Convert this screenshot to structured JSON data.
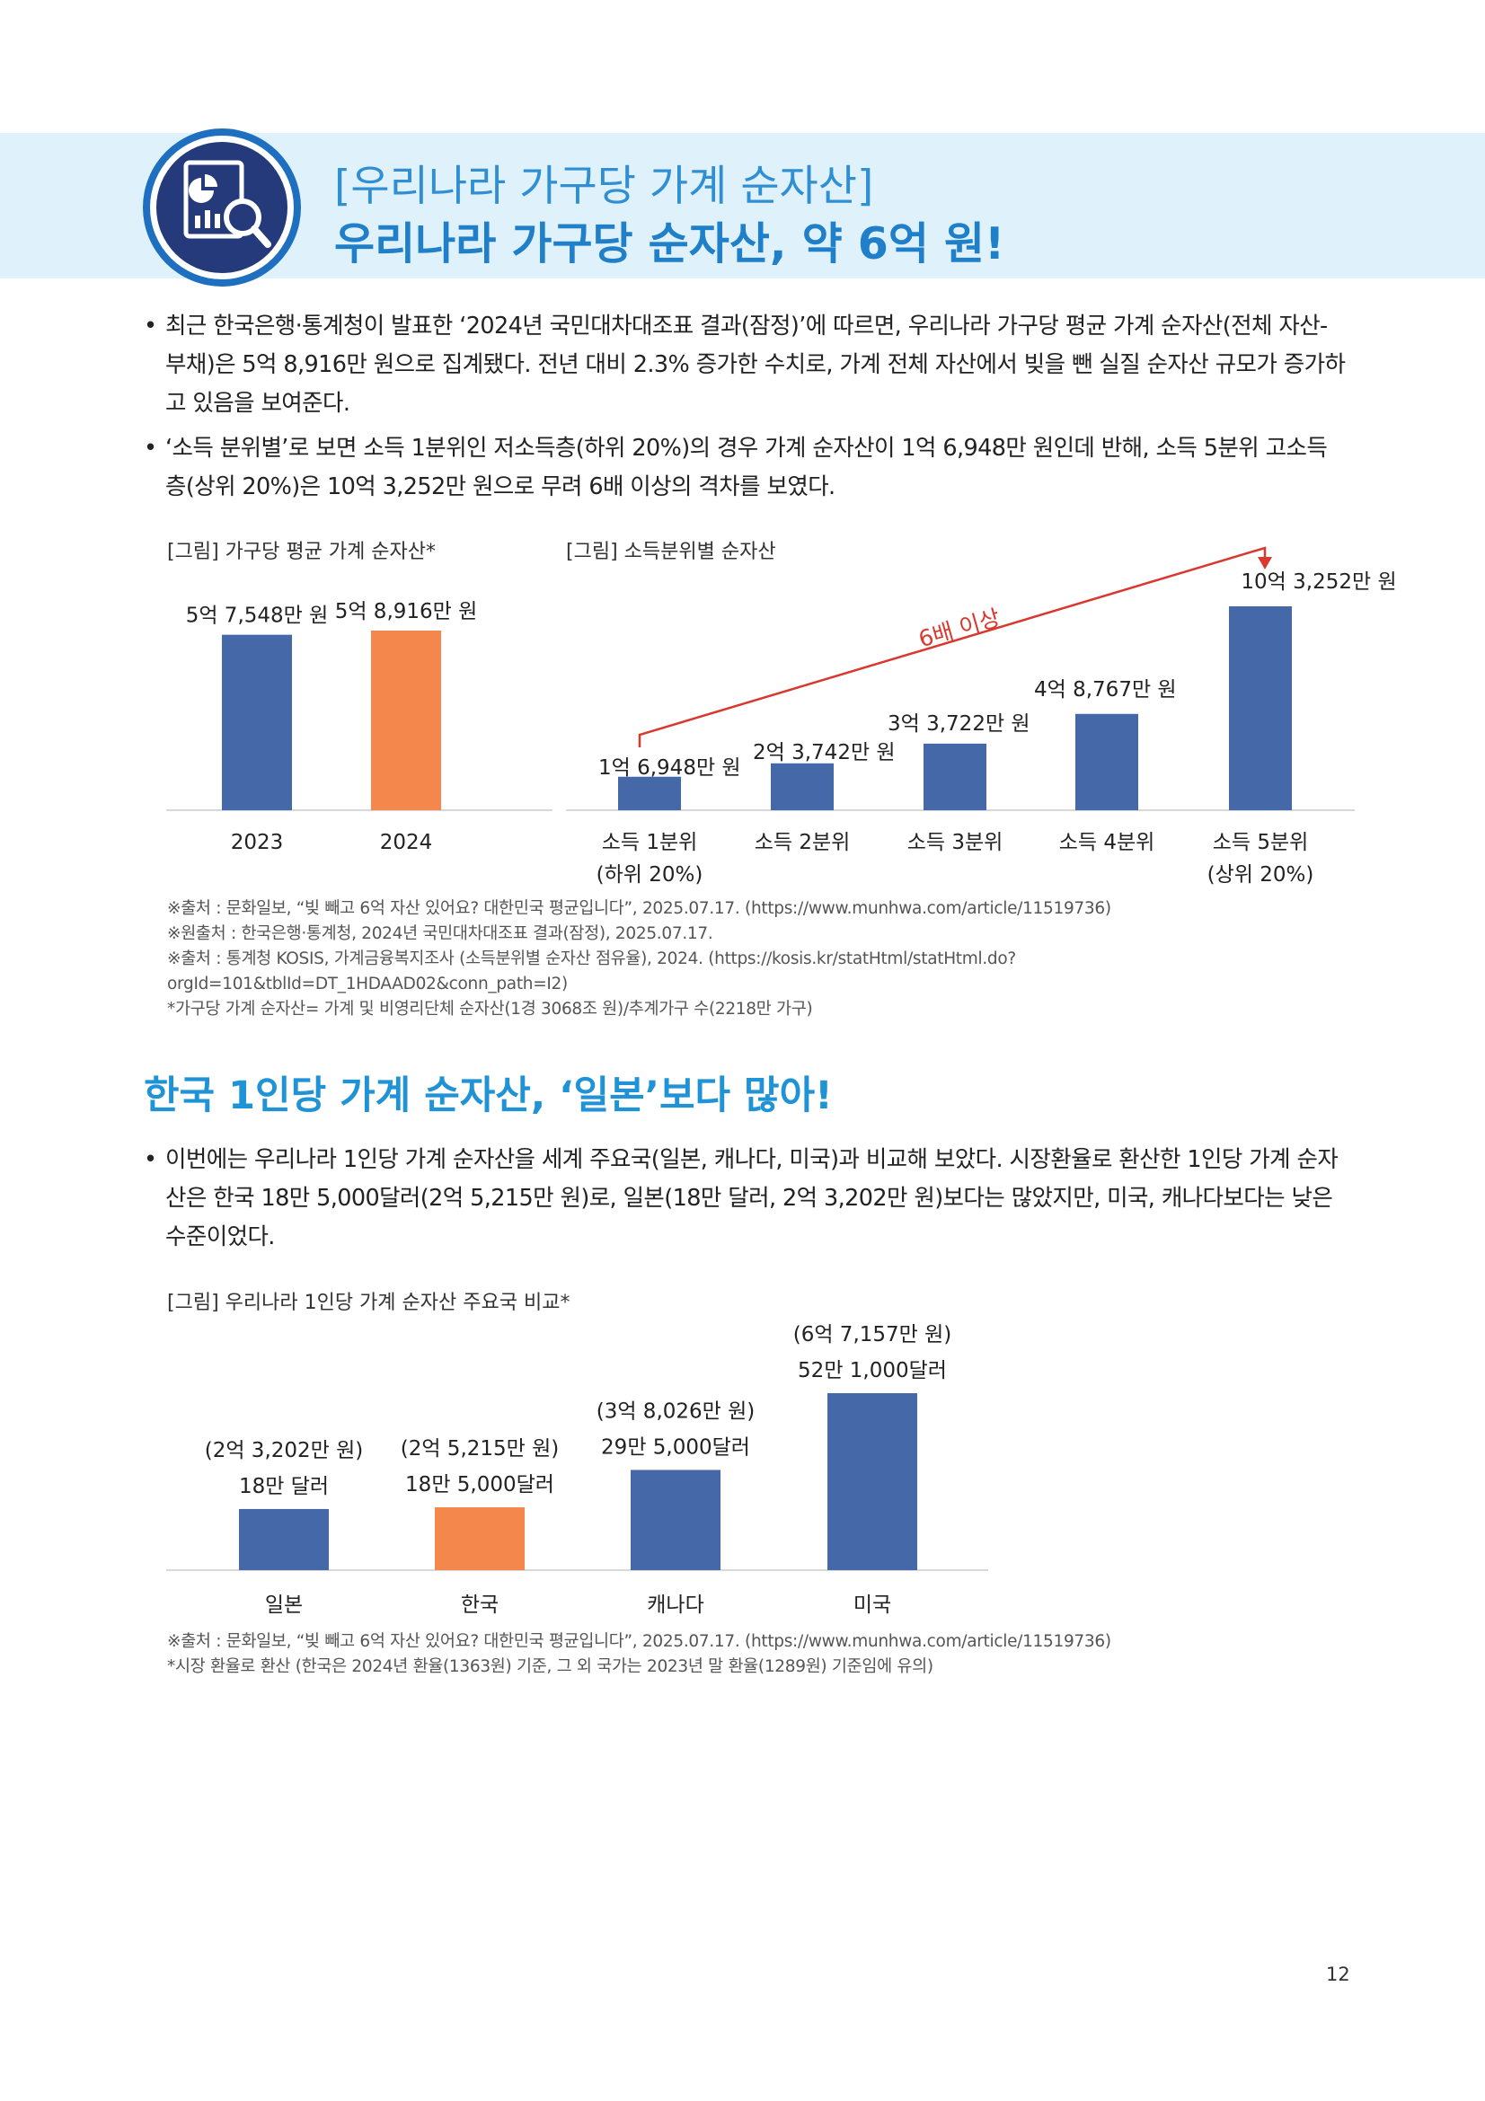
{
  "header": {
    "subtitle": "[우리나라 가구당 가계 순자산]",
    "title": "우리나라 가구당 순자산, 약 6억 원!",
    "icon": "chart-magnifier-icon"
  },
  "section1": {
    "bullets": [
      "최근 한국은행·통계청이 발표한 ‘2024년 국민대차대조표 결과(잠정)’에 따르면, 우리나라 가구당 평균 가계 순자산(전체 자산-부채)은 5억 8,916만 원으로 집계됐다. 전년 대비 2.3% 증가한 수치로, 가계 전체 자산에서 빚을 뺀 실질 순자산 규모가 증가하고 있음을 보여준다.",
      "‘소득 분위별’로 보면 소득 1분위인 저소득층(하위 20%)의 경우 가계 순자산이 1억 6,948만 원인데 반해, 소득 5분위 고소득층(상위 20%)은 10억 3,252만 원으로 무려 6배 이상의 격차를 보였다."
    ],
    "sources": [
      "※출처 : 문화일보, “빚 빼고 6억 자산 있어요? 대한민국 평균입니다”, 2025.07.17. (https://www.munhwa.com/article/11519736)",
      "※원출처 : 한국은행·통계청, 2024년 국민대차대조표 결과(잠정), 2025.07.17.",
      "※출처 : 통계청 KOSIS, 가계금융복지조사 (소득분위별 순자산 점유율), 2024. (https://kosis.kr/statHtml/statHtml.do?",
      "orgId=101&tblId=DT_1HDAAD02&conn_path=I2)",
      "*가구당 가계 순자산= 가계 및 비영리단체 순자산(1경 3068조 원)/추계가구 수(2218만 가구)"
    ]
  },
  "section2": {
    "title": "한국 1인당 가계 순자산, ‘일본’보다 많아!",
    "bullets": [
      "이번에는 우리나라 1인당 가계 순자산을 세계 주요국(일본, 캐나다, 미국)과 비교해 보았다. 시장환율로 환산한 1인당 가계 순자산은 한국 18만 5,000달러(2억 5,215만 원)로, 일본(18만 달러, 2억 3,202만 원)보다는 많았지만, 미국, 캐나다보다는 낮은 수준이었다."
    ],
    "sources": [
      "※출처 : 문화일보, “빚 빼고 6억 자산 있어요? 대한민국 평균입니다”, 2025.07.17. (https://www.munhwa.com/article/11519736)",
      "*시장 환율로 환산 (한국은 2024년 환율(1363원) 기준, 그 외 국가는 2023년 말 환율(1289원) 기준임에 유의)"
    ]
  },
  "chart_data": [
    {
      "type": "bar",
      "title": "[그림] 가구당 평균 가계 순자산*",
      "categories": [
        "2023",
        "2024"
      ],
      "values": [
        57548,
        58916
      ],
      "value_labels": [
        "5억 7,548만 원",
        "5억 8,916만 원"
      ],
      "colors": [
        "#4468a8",
        "#f4874b"
      ],
      "ylim": [
        0,
        70000
      ],
      "unit": "만 원"
    },
    {
      "type": "bar",
      "title": "[그림] 소득분위별 순자산",
      "categories": [
        "소득 1분위",
        "소득 2분위",
        "소득 3분위",
        "소득 4분위",
        "소득 5분위"
      ],
      "category_sublabels": [
        "(하위 20%)",
        "",
        "",
        "",
        "(상위 20%)"
      ],
      "values": [
        16948,
        23742,
        33722,
        48767,
        103252
      ],
      "value_labels": [
        "1억 6,948만 원",
        "2억 3,742만 원",
        "3억 3,722만 원",
        "4억 8,767만 원",
        "10억 3,252만 원"
      ],
      "colors": [
        "#4468a8"
      ],
      "annotation": "6배 이상",
      "annotation_color": "#d9382e",
      "unit": "만 원"
    },
    {
      "type": "bar",
      "title": "[그림] 우리나라 1인당 가계 순자산 주요국 비교*",
      "categories": [
        "일본",
        "한국",
        "캐나다",
        "미국"
      ],
      "values": [
        18,
        18.5,
        29.5,
        52.1
      ],
      "value_labels": [
        "18만 달러",
        "18만 5,000달러",
        "29만 5,000달러",
        "52만 1,000달러"
      ],
      "value_labels_krw": [
        "(2억 3,202만 원)",
        "(2억 5,215만 원)",
        "(3억 8,026만 원)",
        "(6억 7,157만 원)"
      ],
      "colors": [
        "#4468a8",
        "#f4874b",
        "#4468a8",
        "#4468a8"
      ],
      "unit": "만 달러"
    }
  ],
  "page_number": "12"
}
